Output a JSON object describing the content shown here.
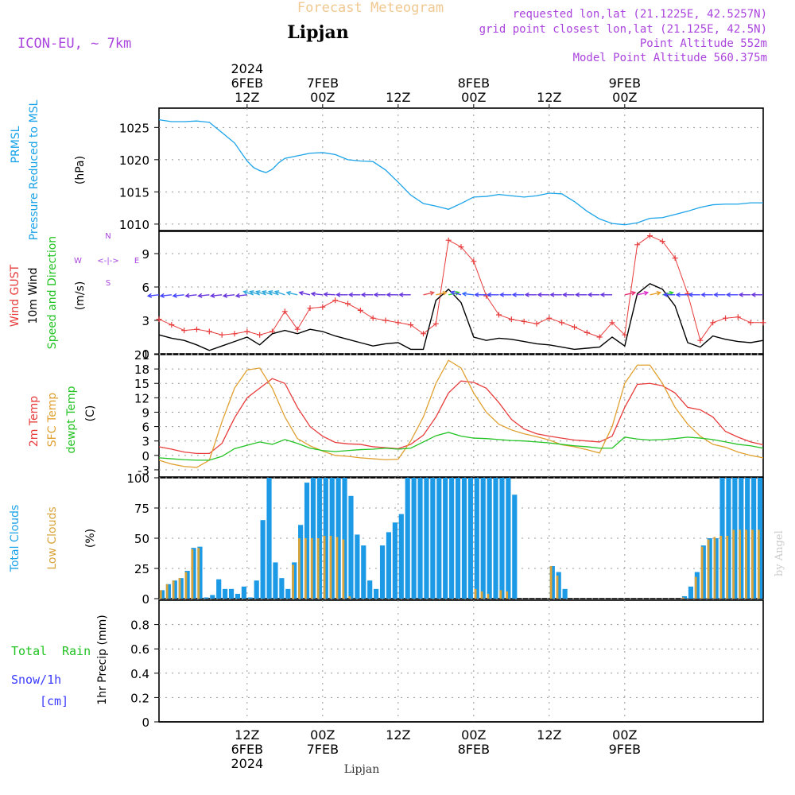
{
  "header": {
    "title": "Forecast Meteogram",
    "location": "Lipjan",
    "model": "ICON-EU, ~ 7km",
    "requested": "requested lon,lat (21.1225E, 42.5257N)",
    "grid_point": "grid point closest lon,lat (21.125E, 42.5N)",
    "point_altitude": "Point Altitude 552m",
    "model_altitude": "Model Point Altitude 560.375m",
    "footer_location": "Lipjan",
    "watermark": "by Angel"
  },
  "colors": {
    "pressure": "#1aa3e8",
    "gust": "#e83c3c",
    "wind": "#000000",
    "dir_label": "#22c322",
    "temp2m": "#e83c3c",
    "sfc": "#e0a030",
    "dewpt": "#22c322",
    "total_clouds": "#1c9ae6",
    "low_clouds": "#d9a43a",
    "rain": "#22c322",
    "snow": "#3a3aff",
    "compass": "#aa44dd",
    "meta": "#aa44dd",
    "title": "#f0c890"
  },
  "time_axis": {
    "top_labels": [
      {
        "line1": "2024",
        "line2": "6FEB",
        "line3": "12Z"
      },
      {
        "line1": "",
        "line2": "7FEB",
        "line3": "00Z"
      },
      {
        "line1": "",
        "line2": "",
        "line3": "12Z"
      },
      {
        "line1": "",
        "line2": "8FEB",
        "line3": "00Z"
      },
      {
        "line1": "",
        "line2": "",
        "line3": "12Z"
      },
      {
        "line1": "",
        "line2": "9FEB",
        "line3": "00Z"
      }
    ],
    "bottom_labels": [
      {
        "line1": "12Z",
        "line2": "6FEB",
        "line3": "2024"
      },
      {
        "line1": "00Z",
        "line2": "7FEB",
        "line3": ""
      },
      {
        "line1": "12Z",
        "line2": "",
        "line3": ""
      },
      {
        "line1": "00Z",
        "line2": "8FEB",
        "line3": ""
      },
      {
        "line1": "12Z",
        "line2": "",
        "line3": ""
      },
      {
        "line1": "00Z",
        "line2": "9FEB",
        "line3": ""
      }
    ]
  },
  "panels": {
    "pressure": {
      "label1": "PRMSL",
      "label2": "Pressure Reduced to MSL",
      "unit": "(hPa)"
    },
    "wind": {
      "label1": "Wind GUST",
      "label2": "10m Wind",
      "label3": "Speed and Direction",
      "unit": "(m/s)",
      "compass_n": "N",
      "compass_s": "S",
      "compass_w": "W",
      "compass_e": "E",
      "compass_center": "<-|->"
    },
    "temp": {
      "label1": "2m Temp",
      "label2": "SFC Temp",
      "label3": "dewpt Temp",
      "unit": "(C)"
    },
    "clouds": {
      "label1": "Total Clouds",
      "label2": "Low Clouds",
      "unit": "(%)"
    },
    "precip": {
      "label1": "Total",
      "label1b": "Rain",
      "label2": "Snow/1h",
      "label3": "[cm]",
      "unit": "1hr Precip (mm)"
    }
  },
  "chart_data": [
    {
      "type": "line",
      "title": "PRMSL Pressure Reduced to MSL",
      "ylabel": "hPa",
      "x_hours": [
        0,
        2,
        4,
        6,
        8,
        10,
        12,
        14,
        15,
        16,
        17,
        18,
        19,
        20,
        22,
        24,
        26,
        28,
        30,
        32,
        34,
        36,
        38,
        40,
        42,
        44,
        46,
        48,
        50,
        52,
        54,
        56,
        58,
        60,
        62,
        64,
        66,
        68,
        70,
        72,
        74,
        76,
        78,
        80,
        82,
        84,
        86,
        88,
        90,
        92,
        94,
        96
      ],
      "values": [
        1026.2,
        1025.9,
        1025.9,
        1026,
        1025.8,
        1024.2,
        1022.6,
        1019.8,
        1018.8,
        1018.3,
        1018,
        1018.5,
        1019.5,
        1020.2,
        1020.6,
        1021,
        1021.1,
        1020.8,
        1020,
        1019.8,
        1019.7,
        1018.4,
        1016.5,
        1014.5,
        1013.2,
        1012.8,
        1012.3,
        1013.2,
        1014.2,
        1014.3,
        1014.6,
        1014.4,
        1014.2,
        1014.4,
        1014.8,
        1014.7,
        1013.5,
        1012,
        1010.8,
        1010.1,
        1009.9,
        1010.2,
        1010.9,
        1011,
        1011.5,
        1012,
        1012.6,
        1013,
        1013.1,
        1013.1,
        1013.3,
        1013.3
      ],
      "ylim": [
        1009,
        1028
      ],
      "yticks": [
        1010,
        1015,
        1020,
        1025
      ]
    },
    {
      "type": "line",
      "title": "Wind GUST / 10m Wind",
      "ylabel": "m/s",
      "x_hours": [
        0,
        2,
        4,
        6,
        8,
        10,
        12,
        14,
        16,
        18,
        20,
        22,
        24,
        26,
        28,
        30,
        32,
        34,
        36,
        38,
        40,
        42,
        44,
        46,
        48,
        50,
        52,
        54,
        56,
        58,
        60,
        62,
        64,
        66,
        68,
        70,
        72,
        74,
        76,
        78,
        80,
        82,
        84,
        86,
        88,
        90,
        92,
        94,
        96
      ],
      "series": [
        {
          "name": "Wind GUST",
          "values": [
            3.1,
            2.6,
            2.1,
            2.2,
            2,
            1.7,
            1.8,
            2,
            1.7,
            2,
            3.8,
            2.2,
            4.1,
            4.2,
            4.8,
            4.5,
            3.9,
            3.2,
            3,
            2.8,
            2.6,
            1.8,
            2.7,
            10.2,
            9.6,
            8.3,
            5.2,
            3.5,
            3.1,
            2.9,
            2.7,
            3.2,
            2.8,
            2.4,
            1.9,
            1.5,
            2.8,
            1.7,
            9.8,
            10.6,
            10.1,
            8.6,
            5.4,
            1.2,
            2.8,
            3.2,
            3.3,
            2.8,
            2.8
          ]
        },
        {
          "name": "10m Wind",
          "values": [
            1.7,
            1.4,
            1.2,
            0.8,
            0.3,
            0.7,
            1.1,
            1.5,
            0.8,
            1.8,
            2.1,
            1.8,
            2.2,
            2,
            1.6,
            1.3,
            1,
            0.7,
            0.9,
            1,
            0.4,
            0.4,
            4.8,
            5.8,
            4.6,
            1.5,
            1.2,
            1.4,
            1.3,
            1.1,
            0.9,
            0.8,
            0.6,
            0.4,
            0.5,
            0.6,
            1.5,
            0.7,
            5.4,
            6.3,
            5.8,
            4.3,
            1,
            0.6,
            1.6,
            1.3,
            1.1,
            1,
            1.2
          ]
        }
      ],
      "ylim": [
        0,
        11
      ],
      "yticks": [
        0,
        3,
        6,
        9
      ]
    },
    {
      "type": "line",
      "title": "2m Temp / SFC Temp / dewpt Temp",
      "ylabel": "C",
      "x_hours": [
        0,
        2,
        4,
        6,
        8,
        10,
        12,
        14,
        16,
        18,
        20,
        22,
        24,
        26,
        28,
        30,
        32,
        34,
        36,
        38,
        40,
        42,
        44,
        46,
        48,
        50,
        52,
        54,
        56,
        58,
        60,
        62,
        64,
        66,
        68,
        70,
        72,
        74,
        76,
        78,
        80,
        82,
        84,
        86,
        88,
        90,
        92,
        94,
        96
      ],
      "series": [
        {
          "name": "2m Temp",
          "values": [
            1.8,
            1.3,
            0.7,
            0.4,
            0.4,
            2.5,
            7.8,
            12,
            14,
            16,
            15,
            10,
            6,
            4,
            2.7,
            2.4,
            2.3,
            1.8,
            1.6,
            1.4,
            2.3,
            4.2,
            8,
            13,
            15.5,
            15.2,
            14,
            11,
            7.5,
            5.5,
            4.5,
            4,
            3.6,
            3.2,
            3.0,
            2.8,
            4,
            10,
            14.8,
            15,
            14.5,
            13,
            10,
            9.5,
            8,
            5,
            3.8,
            2.8,
            2.2
          ]
        },
        {
          "name": "SFC Temp",
          "values": [
            -1,
            -1.8,
            -2.3,
            -2.5,
            -1,
            7,
            14,
            17.8,
            18.2,
            14,
            8,
            3.5,
            2,
            0.9,
            0,
            -0.2,
            -0.5,
            -0.7,
            -0.9,
            -0.8,
            3,
            8,
            15,
            19.8,
            18.2,
            13,
            9,
            6.5,
            5.3,
            4.5,
            3.9,
            3.2,
            2.2,
            1.8,
            1.2,
            0.5,
            6,
            15,
            18.8,
            18.8,
            15,
            10,
            6.5,
            4,
            2.3,
            1.7,
            0.7,
            0,
            -0.5
          ]
        },
        {
          "name": "dewpt Temp",
          "values": [
            -0.5,
            -0.7,
            -0.9,
            -1,
            -1,
            -0.2,
            1.4,
            2.1,
            2.8,
            2.3,
            3.3,
            2.5,
            1.5,
            1,
            0.8,
            1,
            1.2,
            1.3,
            1.5,
            1.3,
            1.5,
            2.8,
            4.1,
            4.8,
            4,
            3.6,
            3.5,
            3.3,
            3.1,
            3,
            2.8,
            2.6,
            2.3,
            2,
            1.8,
            1.5,
            1.5,
            3.8,
            3.4,
            3.2,
            3.3,
            3.5,
            3.8,
            3.6,
            3.3,
            2.8,
            2.3,
            2,
            1.5
          ]
        }
      ],
      "ylim": [
        -4.5,
        21
      ],
      "yticks": [
        -3,
        0,
        3,
        6,
        9,
        12,
        15,
        18,
        21
      ]
    },
    {
      "type": "bar",
      "title": "Total Clouds / Low Clouds",
      "ylabel": "%",
      "x_hours": [
        0,
        1,
        2,
        3,
        4,
        5,
        6,
        7,
        8,
        9,
        10,
        11,
        12,
        13,
        14,
        15,
        16,
        17,
        18,
        19,
        20,
        21,
        22,
        23,
        24,
        25,
        26,
        27,
        28,
        29,
        30,
        31,
        32,
        33,
        34,
        35,
        36,
        37,
        38,
        39,
        40,
        41,
        42,
        43,
        44,
        45,
        46,
        47,
        48,
        49,
        50,
        51,
        52,
        53,
        54,
        55,
        56,
        57,
        58,
        59,
        60,
        61,
        62,
        63,
        64,
        65,
        66,
        67,
        68,
        69,
        70,
        71,
        72,
        73,
        74,
        75,
        76,
        77,
        78,
        79,
        80,
        81,
        82,
        83,
        84,
        85,
        86,
        87,
        88,
        89,
        90,
        91,
        92,
        93,
        94,
        95
      ],
      "series": [
        {
          "name": "Total Clouds",
          "values": [
            7,
            12,
            15,
            17,
            23,
            42,
            43,
            1,
            3,
            16,
            8,
            8,
            4,
            10,
            1,
            15,
            65,
            100,
            30,
            17,
            8,
            30,
            61,
            96,
            100,
            100,
            100,
            100,
            100,
            100,
            85,
            53,
            44,
            15,
            8,
            44,
            55,
            63,
            70,
            100,
            100,
            100,
            100,
            100,
            100,
            100,
            100,
            100,
            100,
            100,
            100,
            100,
            100,
            100,
            100,
            100,
            86,
            0,
            0,
            0,
            0,
            0,
            27,
            22,
            8,
            0,
            0,
            0,
            0,
            0,
            0,
            0,
            0,
            0,
            0,
            0,
            0,
            0,
            0,
            0,
            0,
            0,
            0,
            2,
            10,
            22,
            44,
            50,
            50,
            100,
            100,
            100,
            100,
            100,
            100,
            100
          ]
        },
        {
          "name": "Low Clouds",
          "values": [
            7,
            12,
            15,
            17,
            22,
            41,
            42,
            0,
            0,
            0,
            0,
            0,
            0,
            0,
            0,
            0,
            0,
            0,
            0,
            0,
            0,
            28,
            50,
            50,
            50,
            50,
            52,
            52,
            51,
            49,
            2,
            0,
            0,
            0,
            0,
            0,
            0,
            0,
            0,
            0,
            0,
            0,
            0,
            0,
            0,
            0,
            0,
            0,
            0,
            0,
            8,
            6,
            4,
            0,
            7,
            6,
            0,
            0,
            0,
            0,
            0,
            0,
            27,
            19,
            0,
            0,
            0,
            0,
            0,
            0,
            0,
            0,
            0,
            0,
            0,
            0,
            0,
            0,
            0,
            0,
            0,
            0,
            0,
            1,
            0,
            18,
            43,
            49,
            51,
            52,
            52,
            57,
            57,
            57,
            57,
            57
          ]
        }
      ],
      "ylim": [
        0,
        100
      ],
      "yticks": [
        0,
        25,
        50,
        75,
        100
      ]
    },
    {
      "type": "line",
      "title": "1hr Precip",
      "ylabel": "mm",
      "x_hours": [
        0,
        96
      ],
      "series": [
        {
          "name": "Total Rain",
          "values": [
            0,
            0
          ]
        },
        {
          "name": "Snow/1h",
          "values": [
            0,
            0
          ]
        }
      ],
      "ylim": [
        0,
        1
      ],
      "yticks": [
        0,
        0.2,
        0.4,
        0.6,
        0.8
      ]
    }
  ],
  "wind_barbs": {
    "hours": [
      0,
      2,
      4,
      6,
      8,
      10,
      12,
      14,
      15,
      16,
      17,
      18,
      19,
      20,
      22,
      24,
      26,
      28,
      30,
      32,
      34,
      36,
      38,
      40,
      42,
      44,
      46,
      48,
      50,
      52,
      54,
      56,
      58,
      60,
      62,
      64,
      66,
      68,
      70,
      72,
      74,
      76,
      78,
      80,
      82,
      84,
      86,
      88,
      90,
      92,
      94,
      96
    ],
    "direction_deg": [
      80,
      80,
      80,
      80,
      80,
      80,
      80,
      80,
      120,
      120,
      120,
      120,
      120,
      120,
      110,
      110,
      100,
      95,
      90,
      90,
      90,
      90,
      90,
      90,
      250,
      250,
      250,
      115,
      100,
      90,
      90,
      90,
      90,
      90,
      90,
      90,
      90,
      90,
      90,
      90,
      250,
      250,
      250,
      250,
      90,
      90,
      90,
      90,
      90,
      90,
      90,
      90
    ],
    "color": [
      "#4444ff",
      "#4444ff",
      "#4444ff",
      "#6633dd",
      "#6633dd",
      "#6633dd",
      "#6633dd",
      "#6633dd",
      "#33aadd",
      "#33aadd",
      "#33aadd",
      "#33aadd",
      "#33aadd",
      "#33aadd",
      "#33aadd",
      "#6633dd",
      "#6633dd",
      "#6633dd",
      "#6633dd",
      "#6633dd",
      "#6633dd",
      "#6633dd",
      "#6633dd",
      "#6633dd",
      "#e85555",
      "#e8a030",
      "#33cc33",
      "#4444ff",
      "#3366ff",
      "#4444ff",
      "#4444ff",
      "#4444ff",
      "#4444ff",
      "#6633dd",
      "#6633dd",
      "#6633dd",
      "#6633dd",
      "#6633dd",
      "#6633dd",
      "#6633dd",
      "#e83377",
      "#dd33cc",
      "#e8a030",
      "#33cc33",
      "#4444ff",
      "#4444ff",
      "#4444ff",
      "#4444ff",
      "#4444ff",
      "#4444ff",
      "#6633dd",
      "#6633dd"
    ]
  }
}
